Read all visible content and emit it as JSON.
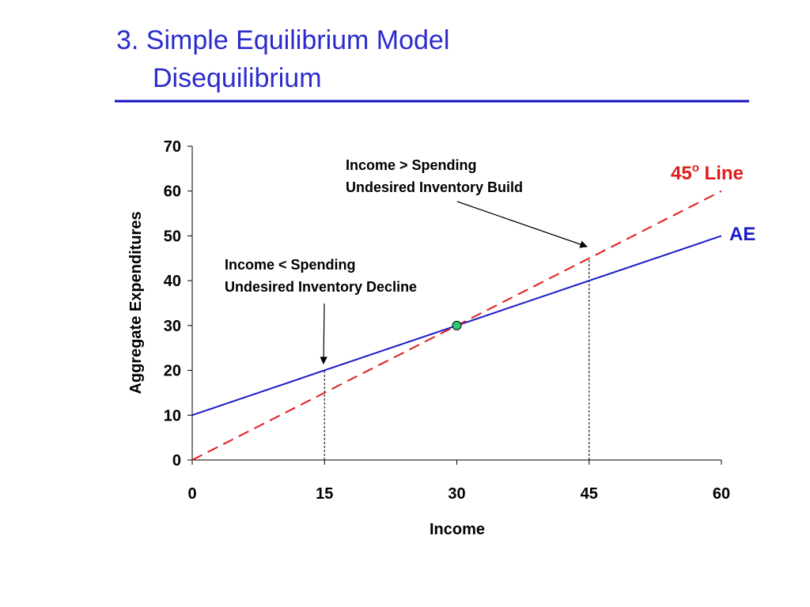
{
  "slide": {
    "title_lines": [
      "3. Simple Equilibrium Model",
      "Disequilibrium"
    ]
  },
  "chart_data": {
    "type": "line",
    "x_label": "Income",
    "y_label": "Aggregate Expenditures",
    "xlim": [
      0,
      60
    ],
    "xticks": [
      0,
      15,
      30,
      45,
      60
    ],
    "ylim": [
      0,
      70
    ],
    "yticks": [
      0,
      10,
      20,
      30,
      40,
      50,
      60,
      70
    ],
    "series": [
      {
        "name": [
          "AE"
        ],
        "color": "#1c1cc8",
        "dashed": false,
        "x": [
          0,
          60
        ],
        "values": [
          10,
          50
        ]
      },
      {
        "name": [
          "45",
          "o",
          " Line"
        ],
        "color": "#e01b1b",
        "dashed": true,
        "x": [
          0,
          60
        ],
        "values": [
          0,
          60
        ]
      }
    ],
    "equilibrium": {
      "x": 30,
      "y": 30,
      "color": "#2ecc71"
    },
    "guides": [
      {
        "x": 15,
        "y": 20
      },
      {
        "x": 45,
        "y": 45
      }
    ],
    "annotations": [
      {
        "lines": [
          "Income < Spending",
          "Undesired Inventory Decline"
        ]
      },
      {
        "lines": [
          "Income > Spending",
          "Undesired Inventory Build"
        ]
      }
    ]
  }
}
